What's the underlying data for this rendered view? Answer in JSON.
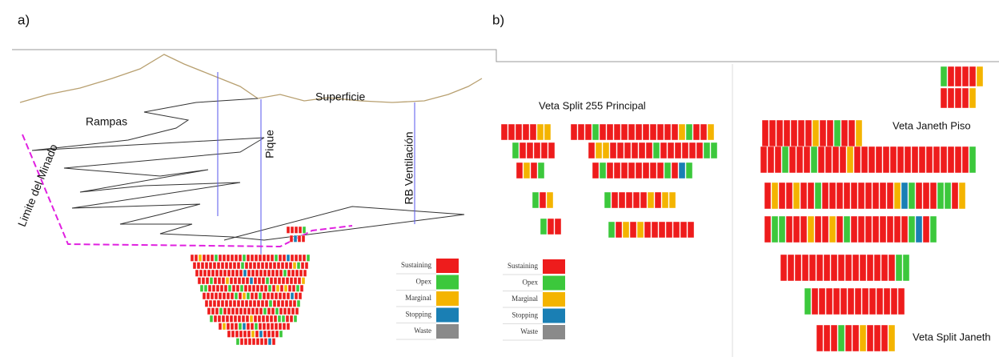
{
  "panels": {
    "a": {
      "label": "a)",
      "surface": "Superficie",
      "ramps": "Rampas",
      "shaft": "Pique",
      "vent": "RB Ventilación",
      "limit": "Limite del Minado"
    },
    "b": {
      "label": "b)",
      "vein_1": "Veta Split 255 Principal",
      "vein_2": "Veta Janeth Piso",
      "vein_3": "Veta Split Janeth"
    }
  },
  "legend": {
    "items": [
      {
        "label": "Sustaining",
        "color": "#ee1c1c"
      },
      {
        "label": "Opex",
        "color": "#3cc83c"
      },
      {
        "label": "Marginal",
        "color": "#f4b400"
      },
      {
        "label": "Stopping",
        "color": "#1a7fb4"
      },
      {
        "label": "Waste",
        "color": "#8a8a8a"
      }
    ]
  }
}
